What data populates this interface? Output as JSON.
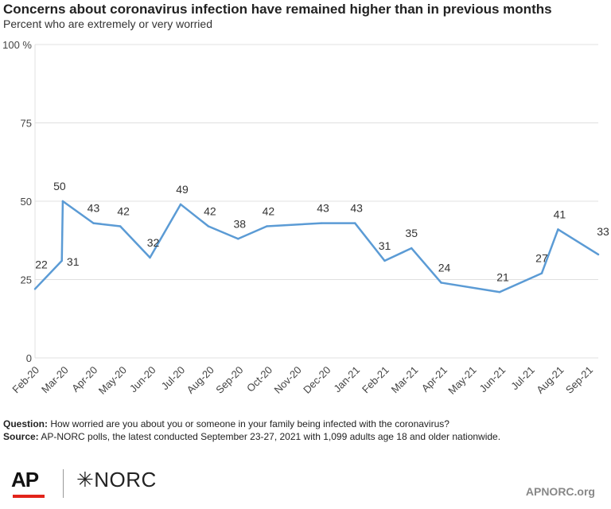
{
  "header": {
    "title": "Concerns about coronavirus infection have remained higher than in previous months",
    "subtitle": "Percent who are extremely or very worried"
  },
  "chart_data": {
    "type": "line",
    "title": "Concerns about coronavirus infection have remained higher than in previous months",
    "subtitle": "Percent who are extremely or very worried",
    "ylim": [
      0,
      100
    ],
    "y_ticks": [
      0,
      25,
      50,
      75,
      100
    ],
    "y_tick_labels": [
      "0",
      "25",
      "50",
      "75",
      "100 %"
    ],
    "grid": true,
    "x_tick_labels": [
      "Feb-20",
      "Mar-20",
      "Apr-20",
      "May-20",
      "Jun-20",
      "Jul-20",
      "Aug-20",
      "Sep-20",
      "Oct-20",
      "Nov-20",
      "Dec-20",
      "Jan-21",
      "Feb-21",
      "Mar-21",
      "Apr-21",
      "May-21",
      "Jun-21",
      "Jul-21",
      "Aug-21",
      "Sep-21"
    ],
    "color": "#5b9bd5",
    "series": [
      {
        "points": [
          {
            "date": "2020-02-15",
            "value": 22,
            "label": "22"
          },
          {
            "date": "2020-03-14",
            "value": 31,
            "label": "31"
          },
          {
            "date": "2020-03-15",
            "value": 50,
            "label": "50"
          },
          {
            "date": "2020-04-16",
            "value": 43,
            "label": "43"
          },
          {
            "date": "2020-05-14",
            "value": 42,
            "label": "42"
          },
          {
            "date": "2020-06-14",
            "value": 32,
            "label": "32"
          },
          {
            "date": "2020-07-16",
            "value": 49,
            "label": "49"
          },
          {
            "date": "2020-08-14",
            "value": 42,
            "label": "42"
          },
          {
            "date": "2020-09-14",
            "value": 38,
            "label": "38"
          },
          {
            "date": "2020-10-14",
            "value": 42,
            "label": "42"
          },
          {
            "date": "2020-12-10",
            "value": 43,
            "label": "43"
          },
          {
            "date": "2021-01-14",
            "value": 43,
            "label": "43"
          },
          {
            "date": "2021-02-14",
            "value": 31,
            "label": "31"
          },
          {
            "date": "2021-03-14",
            "value": 35,
            "label": "35"
          },
          {
            "date": "2021-04-14",
            "value": 24,
            "label": "24"
          },
          {
            "date": "2021-06-14",
            "value": 21,
            "label": "21"
          },
          {
            "date": "2021-07-28",
            "value": 27,
            "label": "27"
          },
          {
            "date": "2021-08-14",
            "value": 41,
            "label": "41"
          },
          {
            "date": "2021-09-25",
            "value": 33,
            "label": "33"
          }
        ]
      }
    ]
  },
  "footer": {
    "question_label": "Question:",
    "question_text": " How worried are you about you or someone in your family being infected with the coronavirus?",
    "source_label": "Source:",
    "source_text": "  AP-NORC polls, the latest conducted September 23-27, 2021 with 1,099 adults age 18 and older nationwide.",
    "logo_ap": "AP",
    "logo_norc": "✳NORC",
    "site": "APNORC.org"
  }
}
